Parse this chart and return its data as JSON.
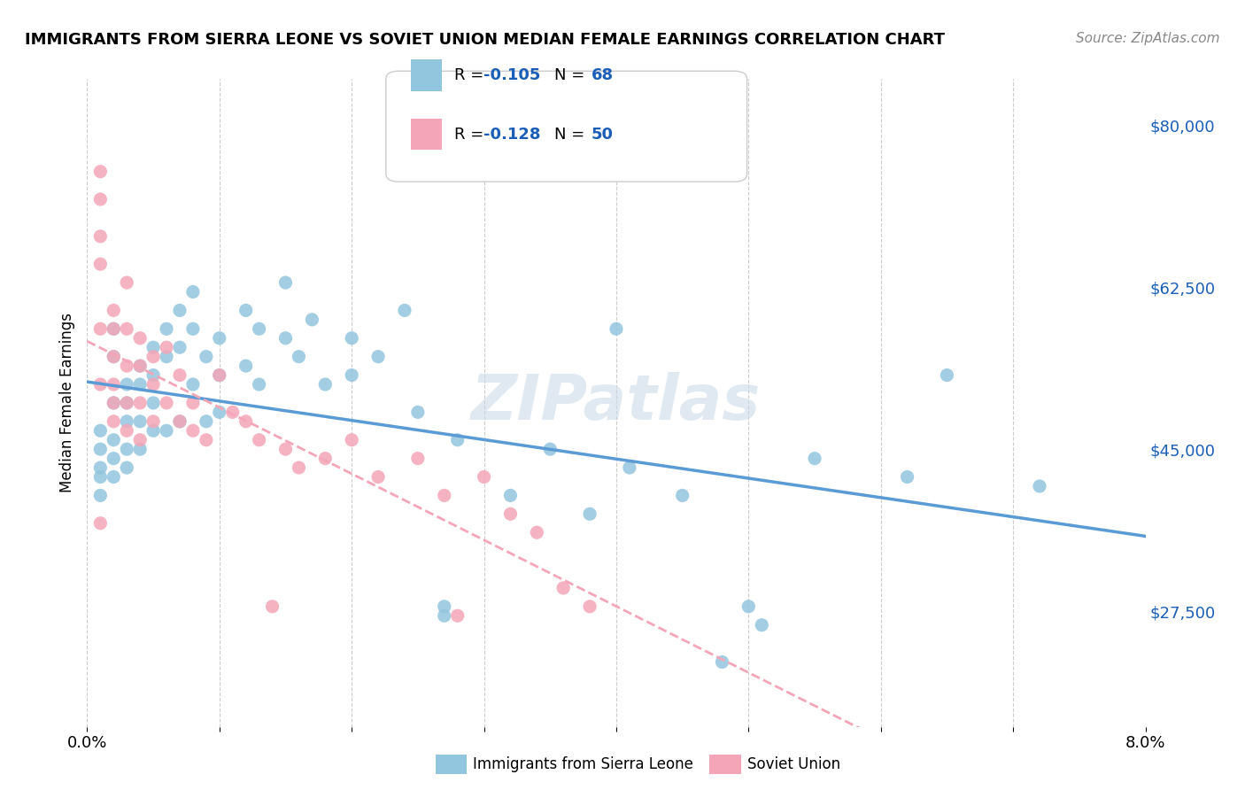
{
  "title": "IMMIGRANTS FROM SIERRA LEONE VS SOVIET UNION MEDIAN FEMALE EARNINGS CORRELATION CHART",
  "source": "Source: ZipAtlas.com",
  "xlabel": "",
  "ylabel": "Median Female Earnings",
  "xmin": 0.0,
  "xmax": 0.08,
  "ymin": 15000,
  "ymax": 85000,
  "yticks": [
    27500,
    45000,
    62500,
    80000
  ],
  "ytick_labels": [
    "$27,500",
    "$45,000",
    "$62,500",
    "$80,000"
  ],
  "xticks": [
    0.0,
    0.01,
    0.02,
    0.03,
    0.04,
    0.05,
    0.06,
    0.07,
    0.08
  ],
  "xtick_labels": [
    "0.0%",
    "",
    "",
    "",
    "",
    "",
    "",
    "",
    "8.0%"
  ],
  "legend_entry1": "R = -0.105   N = 68",
  "legend_entry2": "R = -0.128   N = 50",
  "color_sierra": "#92c5de",
  "color_soviet": "#f4a6b8",
  "color_blue_text": "#1a5eb8",
  "color_reg_sierra": "#5b9bd5",
  "color_reg_soviet": "#f4a6b8",
  "background_color": "#ffffff",
  "watermark": "ZIPatlas",
  "sierra_R": -0.105,
  "sierra_N": 68,
  "soviet_R": -0.128,
  "soviet_N": 50,
  "sierra_x": [
    0.001,
    0.001,
    0.001,
    0.001,
    0.001,
    0.002,
    0.002,
    0.002,
    0.002,
    0.002,
    0.002,
    0.003,
    0.003,
    0.003,
    0.003,
    0.003,
    0.004,
    0.004,
    0.004,
    0.004,
    0.005,
    0.005,
    0.005,
    0.005,
    0.006,
    0.006,
    0.006,
    0.007,
    0.007,
    0.007,
    0.008,
    0.008,
    0.008,
    0.009,
    0.009,
    0.01,
    0.01,
    0.01,
    0.012,
    0.012,
    0.013,
    0.013,
    0.015,
    0.015,
    0.016,
    0.017,
    0.018,
    0.02,
    0.02,
    0.022,
    0.024,
    0.025,
    0.027,
    0.027,
    0.028,
    0.032,
    0.035,
    0.038,
    0.04,
    0.041,
    0.045,
    0.048,
    0.05,
    0.051,
    0.055,
    0.062,
    0.065,
    0.072
  ],
  "sierra_y": [
    43000,
    45000,
    47000,
    40000,
    42000,
    58000,
    55000,
    50000,
    46000,
    44000,
    42000,
    52000,
    50000,
    48000,
    45000,
    43000,
    54000,
    52000,
    48000,
    45000,
    56000,
    53000,
    50000,
    47000,
    58000,
    55000,
    47000,
    60000,
    56000,
    48000,
    62000,
    58000,
    52000,
    55000,
    48000,
    57000,
    53000,
    49000,
    60000,
    54000,
    58000,
    52000,
    63000,
    57000,
    55000,
    59000,
    52000,
    57000,
    53000,
    55000,
    60000,
    49000,
    27000,
    28000,
    46000,
    40000,
    45000,
    38000,
    58000,
    43000,
    40000,
    22000,
    28000,
    26000,
    44000,
    42000,
    53000,
    41000
  ],
  "soviet_x": [
    0.001,
    0.001,
    0.001,
    0.001,
    0.001,
    0.001,
    0.001,
    0.002,
    0.002,
    0.002,
    0.002,
    0.002,
    0.002,
    0.003,
    0.003,
    0.003,
    0.003,
    0.003,
    0.004,
    0.004,
    0.004,
    0.004,
    0.005,
    0.005,
    0.005,
    0.006,
    0.006,
    0.007,
    0.007,
    0.008,
    0.008,
    0.009,
    0.01,
    0.011,
    0.012,
    0.013,
    0.014,
    0.015,
    0.016,
    0.018,
    0.02,
    0.022,
    0.025,
    0.027,
    0.028,
    0.03,
    0.032,
    0.034,
    0.036,
    0.038
  ],
  "soviet_y": [
    75000,
    72000,
    68000,
    65000,
    58000,
    52000,
    37000,
    60000,
    58000,
    55000,
    52000,
    50000,
    48000,
    63000,
    58000,
    54000,
    50000,
    47000,
    57000,
    54000,
    50000,
    46000,
    55000,
    52000,
    48000,
    56000,
    50000,
    53000,
    48000,
    50000,
    47000,
    46000,
    53000,
    49000,
    48000,
    46000,
    28000,
    45000,
    43000,
    44000,
    46000,
    42000,
    44000,
    40000,
    27000,
    42000,
    38000,
    36000,
    30000,
    28000
  ]
}
